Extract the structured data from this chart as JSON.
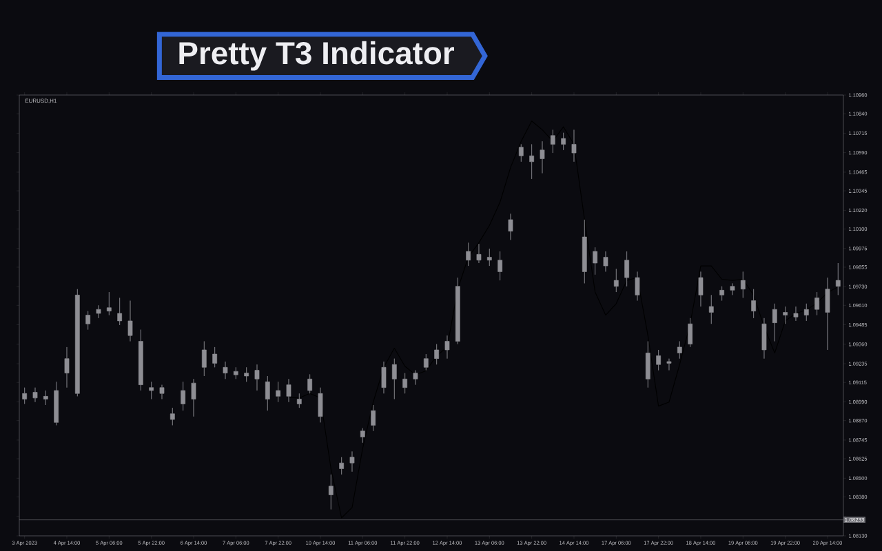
{
  "chart_data": {
    "type": "candlestick",
    "title": "Pretty T3 Indicator",
    "annotations": [
      "EURUSD,H1"
    ],
    "color": "#8e8e94",
    "categories": [
      "3 Apr 2023",
      null,
      null,
      null,
      "4 Apr 14:00",
      null,
      null,
      null,
      "5 Apr 06:00",
      null,
      null,
      null,
      "5 Apr 22:00",
      null,
      null,
      null,
      "6 Apr 14:00",
      null,
      null,
      null,
      "7 Apr 06:00",
      null,
      null,
      null,
      "7 Apr 22:00",
      null,
      null,
      null,
      "10 Apr 14:00",
      null,
      null,
      null,
      "11 Apr 06:00",
      null,
      null,
      null,
      "11 Apr 22:00",
      null,
      null,
      null,
      "12 Apr 14:00",
      null,
      null,
      null,
      "13 Apr 06:00",
      null,
      null,
      null,
      "13 Apr 22:00",
      null,
      null,
      null,
      "14 Apr 14:00",
      null,
      null,
      null,
      "17 Apr 06:00",
      null,
      null,
      null,
      "17 Apr 22:00",
      null,
      null,
      null,
      "18 Apr 14:00",
      null,
      null,
      null,
      "19 Apr 06:00",
      null,
      null,
      null,
      "19 Apr 22:00",
      null,
      null,
      null,
      "20 Apr 14:00",
      null
    ],
    "ohlc": [
      [
        1.09044,
        1.09082,
        1.08977,
        1.09008
      ],
      [
        1.09052,
        1.09082,
        1.08989,
        1.09015
      ],
      [
        1.09026,
        1.09063,
        1.0897,
        1.09008
      ],
      [
        1.08858,
        1.09119,
        1.0884,
        1.09063
      ],
      [
        1.09175,
        1.09342,
        1.09082,
        1.09268
      ],
      [
        1.09044,
        1.09714,
        1.09026,
        1.09676
      ],
      [
        1.09547,
        1.09573,
        1.09454,
        1.09491
      ],
      [
        1.09558,
        1.0961,
        1.09528,
        1.09584
      ],
      [
        1.09573,
        1.09695,
        1.09547,
        1.09595
      ],
      [
        1.09558,
        1.09658,
        1.09483,
        1.0951
      ],
      [
        1.0951,
        1.0964,
        1.09379,
        1.09416
      ],
      [
        1.09379,
        1.09454,
        1.09063,
        1.091
      ],
      [
        1.09082,
        1.09119,
        1.09008,
        1.09063
      ],
      [
        1.09044,
        1.091,
        1.09008,
        1.09082
      ],
      [
        1.08914,
        1.08952,
        1.0884,
        1.08877
      ],
      [
        1.08977,
        1.09119,
        1.08934,
        1.09063
      ],
      [
        1.09008,
        1.09137,
        1.08896,
        1.09111
      ],
      [
        1.09212,
        1.09379,
        1.09156,
        1.09324
      ],
      [
        1.09297,
        1.09342,
        1.09212,
        1.09238
      ],
      [
        1.09212,
        1.09249,
        1.09137,
        1.09175
      ],
      [
        1.09164,
        1.09212,
        1.09137,
        1.09186
      ],
      [
        1.09175,
        1.09212,
        1.09119,
        1.09156
      ],
      [
        1.09193,
        1.0923,
        1.09063,
        1.09137
      ],
      [
        1.09119,
        1.09156,
        1.08934,
        1.09008
      ],
      [
        1.09063,
        1.09119,
        1.08989,
        1.09026
      ],
      [
        1.09026,
        1.09137,
        1.08989,
        1.091
      ],
      [
        1.09008,
        1.09044,
        1.08952,
        1.08977
      ],
      [
        1.09063,
        1.09167,
        1.09044,
        1.09137
      ],
      [
        1.09044,
        1.09082,
        1.08858,
        1.08896
      ],
      [
        1.08449,
        1.08524,
        1.083,
        1.08393
      ],
      [
        1.08561,
        1.08635,
        1.08524,
        1.08598
      ],
      [
        1.08598,
        1.08672,
        1.08542,
        1.08635
      ],
      [
        1.08765,
        1.08821,
        1.08728,
        1.08803
      ],
      [
        1.0884,
        1.0897,
        1.08803,
        1.08934
      ],
      [
        1.09082,
        1.09249,
        1.09044,
        1.09212
      ],
      [
        1.0923,
        1.09268,
        1.09008,
        1.09137
      ],
      [
        1.09082,
        1.09175,
        1.09044,
        1.09137
      ],
      [
        1.09137,
        1.09193,
        1.091,
        1.09175
      ],
      [
        1.09212,
        1.09297,
        1.09193,
        1.09268
      ],
      [
        1.09268,
        1.09361,
        1.0923,
        1.09324
      ],
      [
        1.09324,
        1.09416,
        1.09268,
        1.09379
      ],
      [
        1.09379,
        1.09788,
        1.09361,
        1.09732
      ],
      [
        1.099,
        1.10012,
        1.09863,
        1.09956
      ],
      [
        1.09937,
        1.10004,
        1.09881,
        1.099
      ],
      [
        1.09919,
        1.09974,
        1.09863,
        1.099
      ],
      [
        1.099,
        1.09956,
        1.0977,
        1.09826
      ],
      [
        1.10086,
        1.10198,
        1.1003,
        1.1016
      ],
      [
        1.1057,
        1.10644,
        1.10532,
        1.10625
      ],
      [
        1.10532,
        1.10644,
        1.10421,
        1.1057
      ],
      [
        1.10551,
        1.10663,
        1.10458,
        1.10607
      ],
      [
        1.10644,
        1.10737,
        1.10588,
        1.107
      ],
      [
        1.10681,
        1.10718,
        1.10607,
        1.10644
      ],
      [
        1.10644,
        1.10737,
        1.10532,
        1.10588
      ],
      [
        1.10049,
        1.1016,
        1.09751,
        1.09826
      ],
      [
        1.09881,
        1.09982,
        1.09807,
        1.09956
      ],
      [
        1.09919,
        1.09956,
        1.09826,
        1.09863
      ],
      [
        1.0977,
        1.09844,
        1.09695,
        1.09732
      ],
      [
        1.09788,
        1.09956,
        1.09732,
        1.099
      ],
      [
        1.09788,
        1.09826,
        1.0964,
        1.09676
      ],
      [
        1.09304,
        1.09379,
        1.09082,
        1.09137
      ],
      [
        1.0923,
        1.09324,
        1.09193,
        1.09286
      ],
      [
        1.09238,
        1.09268,
        1.09193,
        1.09249
      ],
      [
        1.09304,
        1.09379,
        1.09268,
        1.09342
      ],
      [
        1.09361,
        1.09528,
        1.09342,
        1.09491
      ],
      [
        1.09676,
        1.09826,
        1.09602,
        1.09788
      ],
      [
        1.09565,
        1.09676,
        1.09491,
        1.09602
      ],
      [
        1.09676,
        1.09732,
        1.0964,
        1.09707
      ],
      [
        1.09707,
        1.09751,
        1.09676,
        1.09732
      ],
      [
        1.09714,
        1.09826,
        1.09658,
        1.0977
      ],
      [
        1.0964,
        1.09714,
        1.09528,
        1.09573
      ],
      [
        1.09491,
        1.09528,
        1.09268,
        1.09324
      ],
      [
        1.09498,
        1.09621,
        1.09379,
        1.09584
      ],
      [
        1.09547,
        1.09602,
        1.09491,
        1.09565
      ],
      [
        1.09558,
        1.09602,
        1.0951,
        1.09535
      ],
      [
        1.09547,
        1.09621,
        1.0951,
        1.09584
      ],
      [
        1.09584,
        1.09695,
        1.09547,
        1.09658
      ],
      [
        1.09565,
        1.09788,
        1.09324,
        1.09714
      ],
      [
        1.09732,
        1.09881,
        1.09676,
        1.0977
      ]
    ],
    "series": [
      {
        "type": "line",
        "color": "#000000",
        "values": [
          null,
          null,
          null,
          null,
          null,
          null,
          null,
          null,
          null,
          null,
          null,
          null,
          null,
          null,
          null,
          null,
          null,
          null,
          null,
          null,
          null,
          null,
          null,
          null,
          null,
          1.09019,
          1.09015,
          1.09044,
          1.09015,
          1.08561,
          1.08245,
          1.08312,
          1.08691,
          1.08989,
          1.09212,
          1.09335,
          1.09219,
          1.09164,
          1.0919,
          1.09286,
          1.09342,
          1.09714,
          1.09919,
          1.10012,
          1.10123,
          1.10272,
          1.10495,
          1.10663,
          1.10793,
          1.10737,
          1.10663,
          1.10756,
          1.10644,
          1.1016,
          1.09695,
          1.09547,
          1.09621,
          1.0977,
          1.09788,
          1.09416,
          1.08963,
          1.08989,
          1.0923,
          1.09491,
          1.09863,
          1.09863,
          1.09777,
          1.0977,
          1.09777,
          1.09676,
          1.09472,
          1.09304,
          1.0951,
          1.09558,
          1.0958,
          1.09625,
          1.09692,
          1.09729
        ]
      }
    ],
    "ref_lines": [
      {
        "axis": "y",
        "value": 1.08233,
        "label": "1.08233",
        "color": "#6e6e74"
      }
    ],
    "ylim": [
      1.0813,
      1.1096
    ],
    "yticks": [
      {
        "value": 1.0813,
        "label": "1.08130"
      },
      {
        "value": 1.08255,
        "label": null
      },
      {
        "value": 1.0838,
        "label": "1.08380"
      },
      {
        "value": 1.085,
        "label": "1.08500"
      },
      {
        "value": 1.08625,
        "label": "1.08625"
      },
      {
        "value": 1.08745,
        "label": "1.08745"
      },
      {
        "value": 1.0887,
        "label": "1.08870"
      },
      {
        "value": 1.0899,
        "label": "1.08990"
      },
      {
        "value": 1.09115,
        "label": "1.09115"
      },
      {
        "value": 1.09235,
        "label": "1.09235"
      },
      {
        "value": 1.0936,
        "label": "1.09360"
      },
      {
        "value": 1.09485,
        "label": "1.09485"
      },
      {
        "value": 1.0961,
        "label": "1.09610"
      },
      {
        "value": 1.0973,
        "label": "1.09730"
      },
      {
        "value": 1.09855,
        "label": "1.09855"
      },
      {
        "value": 1.09975,
        "label": "1.09975"
      },
      {
        "value": 1.101,
        "label": "1.10100"
      },
      {
        "value": 1.1022,
        "label": "1.10220"
      },
      {
        "value": 1.10345,
        "label": "1.10345"
      },
      {
        "value": 1.10465,
        "label": "1.10465"
      },
      {
        "value": 1.1059,
        "label": "1.10590"
      },
      {
        "value": 1.10715,
        "label": "1.10715"
      },
      {
        "value": 1.1084,
        "label": "1.10840"
      },
      {
        "value": 1.1096,
        "label": "1.10960"
      }
    ]
  }
}
